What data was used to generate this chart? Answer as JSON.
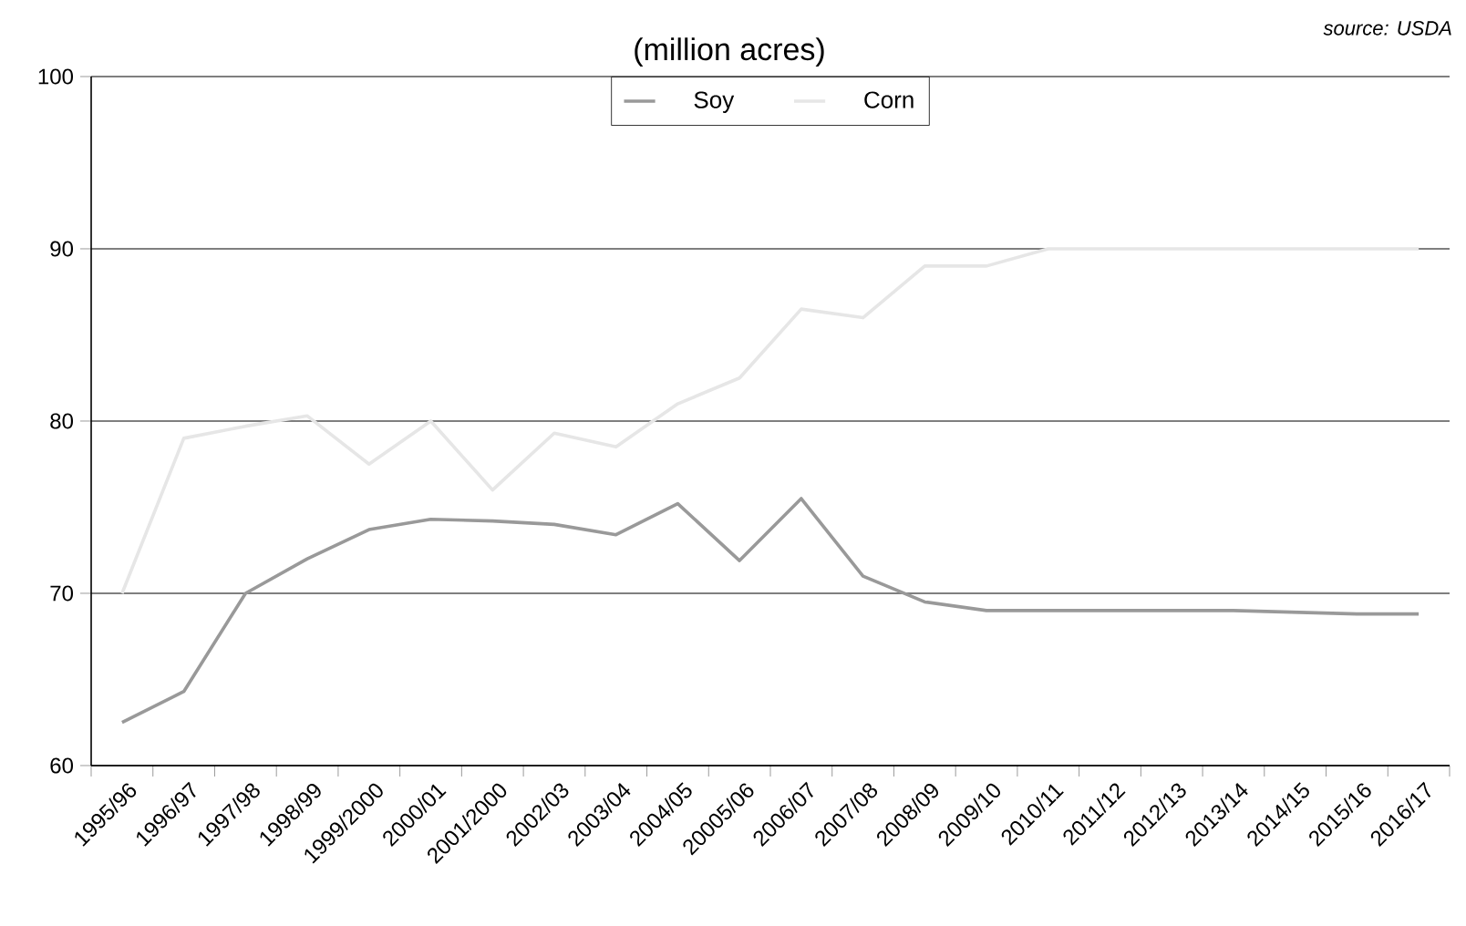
{
  "chart_data": {
    "type": "line",
    "title": "(million acres)",
    "annotations": [
      "source: USDA"
    ],
    "categories": [
      "1995/96",
      "1996/97",
      "1997/98",
      "1998/99",
      "1999/2000",
      "2000/01",
      "2001/2000",
      "2002/03",
      "2003/04",
      "2004/05",
      "20005/06",
      "2006/07",
      "2007/08",
      "2008/09",
      "2009/10",
      "2010/11",
      "2011/12",
      "2012/13",
      "2013/14",
      "2014/15",
      "2015/16",
      "2016/17"
    ],
    "series": [
      {
        "name": "Soy",
        "color": "#999999",
        "values": [
          62.5,
          64.3,
          70,
          72,
          73.7,
          74.3,
          74.2,
          74.0,
          73.4,
          75.2,
          71.9,
          75.5,
          71.0,
          69.5,
          69.0,
          69.0,
          69.0,
          69.0,
          69.0,
          68.9,
          68.8,
          68.8
        ]
      },
      {
        "name": "Corn",
        "color": "#e6e6e6",
        "values": [
          70,
          79,
          79.7,
          80.3,
          77.5,
          80,
          76,
          79.3,
          78.5,
          81,
          82.5,
          86.5,
          86,
          89,
          89,
          90,
          90,
          90,
          90,
          90,
          90,
          90
        ]
      }
    ],
    "ylim": [
      60,
      100
    ],
    "yticks": [
      60,
      70,
      80,
      90,
      100
    ],
    "grid": "y",
    "legend": "top",
    "marker": "none",
    "line_style": "solid"
  }
}
